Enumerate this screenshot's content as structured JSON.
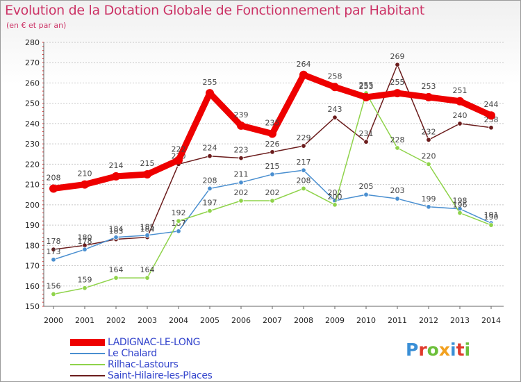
{
  "title": "Evolution de la Dotation Globale de Fonctionnement par Habitant",
  "subtitle": "(en € et par an)",
  "logo": {
    "text": "Proxiti",
    "letters": [
      {
        "ch": "P",
        "color": "#3a8fd6"
      },
      {
        "ch": "r",
        "color": "#e0392b"
      },
      {
        "ch": "o",
        "color": "#6cbf3a"
      },
      {
        "ch": "x",
        "color": "#f2a11f"
      },
      {
        "ch": "i",
        "color": "#3a8fd6"
      },
      {
        "ch": "t",
        "color": "#e0392b"
      },
      {
        "ch": "i",
        "color": "#6cbf3a"
      }
    ]
  },
  "chart_data": {
    "type": "line",
    "title": "Evolution de la Dotation Globale de Fonctionnement par Habitant",
    "subtitle": "(en € et par an)",
    "x": [
      2000,
      2001,
      2002,
      2003,
      2004,
      2005,
      2006,
      2007,
      2008,
      2009,
      2010,
      2011,
      2012,
      2013,
      2014
    ],
    "ylim": [
      150,
      280
    ],
    "yticks": [
      150,
      160,
      170,
      180,
      190,
      200,
      210,
      220,
      230,
      240,
      250,
      260,
      270,
      280
    ],
    "grid": true,
    "legend_position": "bottom-left",
    "series": [
      {
        "name": "Saint-Hilaire-les-Places",
        "color": "#6b1c1c",
        "values": [
          178,
          180,
          183,
          184,
          220,
          224,
          223,
          226,
          229,
          243,
          231,
          269,
          232,
          240,
          238
        ]
      },
      {
        "name": "Le Chalard",
        "color": "#4a8fd0",
        "values": [
          173,
          178,
          184,
          185,
          187,
          208,
          211,
          215,
          217,
          202,
          205,
          203,
          199,
          198,
          191
        ]
      },
      {
        "name": "Rilhac-Lastours",
        "color": "#8fd34a",
        "values": [
          156,
          159,
          164,
          164,
          192,
          197,
          202,
          202,
          208,
          200,
          255,
          228,
          220,
          196,
          190
        ]
      },
      {
        "name": "LADIGNAC-LE-LONG",
        "color": "#ee0000",
        "values": [
          208,
          210,
          214,
          215,
          222,
          255,
          239,
          235,
          264,
          258,
          253,
          255,
          253,
          251,
          244
        ]
      }
    ]
  },
  "legend": [
    {
      "name": "LADIGNAC-LE-LONG",
      "color": "#ee0000"
    },
    {
      "name": "Le Chalard",
      "color": "#4a8fd0"
    },
    {
      "name": "Rilhac-Lastours",
      "color": "#8fd34a"
    },
    {
      "name": "Saint-Hilaire-les-Places",
      "color": "#6b1c1c"
    }
  ]
}
